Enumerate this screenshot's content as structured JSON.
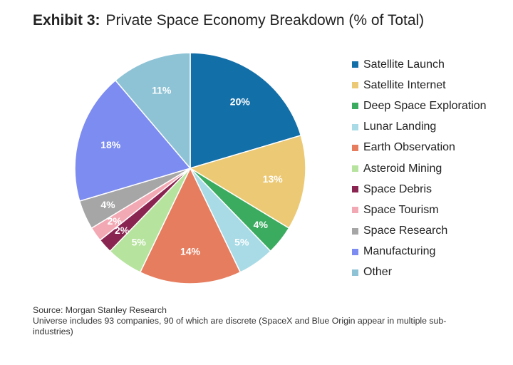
{
  "header": {
    "exhibit": "Exhibit 3:",
    "title": "Private Space Economy Breakdown (% of Total)"
  },
  "chart_data": {
    "type": "pie",
    "title": "Private Space Economy Breakdown (% of Total)",
    "start": "12 o'clock",
    "direction": "clockwise",
    "slices": [
      {
        "label": "Satellite Launch",
        "value": 20,
        "display": "20%",
        "color": "#136fa8"
      },
      {
        "label": "Satellite Internet",
        "value": 13,
        "display": "13%",
        "color": "#ecc974"
      },
      {
        "label": "Deep Space Exploration",
        "value": 4,
        "display": "4%",
        "color": "#3bab60"
      },
      {
        "label": "Lunar Landing",
        "value": 5,
        "display": "5%",
        "color": "#a8dbe6"
      },
      {
        "label": "Earth Observation",
        "value": 14,
        "display": "14%",
        "color": "#e67d5f"
      },
      {
        "label": "Asteroid Mining",
        "value": 5,
        "display": "5%",
        "color": "#b6e39d"
      },
      {
        "label": "Space Debris",
        "value": 2,
        "display": "2%",
        "color": "#8a2552"
      },
      {
        "label": "Space Tourism",
        "value": 2,
        "display": "2%",
        "color": "#f3a9b4"
      },
      {
        "label": "Space Research",
        "value": 4,
        "display": "4%",
        "color": "#a6a6a6"
      },
      {
        "label": "Manufacturing",
        "value": 18,
        "display": "18%",
        "color": "#7c8cf0"
      },
      {
        "label": "Other",
        "value": 11,
        "display": "11%",
        "color": "#8ec3d6"
      }
    ],
    "legend_position": "right"
  },
  "footer": {
    "source": "Source: Morgan Stanley Research",
    "note_line1": "Universe includes 93 companies, 90 of which are discrete (SpaceX and Blue Origin appear in multiple sub-",
    "note_line2": "industries)"
  }
}
